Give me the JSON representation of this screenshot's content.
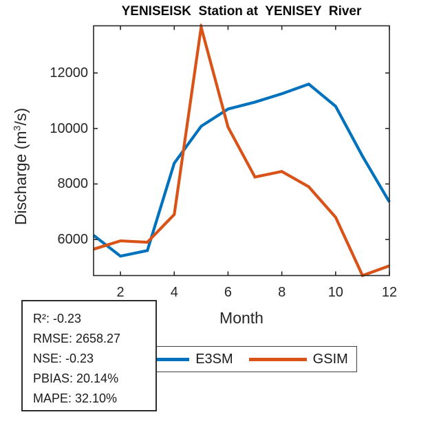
{
  "chart_data": {
    "type": "line",
    "title": "YENISEISK  Station at  YENISEY  River",
    "xlabel": "Month",
    "ylabel": "Discharge (m3/s)",
    "ylabel_parts": {
      "pre": "Discharge (m",
      "sup": "3",
      "post": "/s)"
    },
    "x": [
      1,
      2,
      3,
      4,
      5,
      6,
      7,
      8,
      9,
      10,
      11,
      12
    ],
    "xlim": [
      1,
      12
    ],
    "ylim": [
      4700,
      13700
    ],
    "xticks": [
      2,
      4,
      6,
      8,
      10,
      12
    ],
    "yticks": [
      6000,
      8000,
      10000,
      12000
    ],
    "grid": false,
    "legend_position": "below-axis",
    "series": [
      {
        "name": "E3SM",
        "color": "#0072BD",
        "values": [
          6150,
          5400,
          5600,
          8750,
          10080,
          10700,
          10950,
          11250,
          11600,
          10800,
          9000,
          7350
        ]
      },
      {
        "name": "GSIM",
        "color": "#D95319",
        "values": [
          5650,
          5950,
          5900,
          6900,
          13650,
          10050,
          8250,
          8450,
          7900,
          6800,
          4700,
          5050
        ]
      }
    ]
  },
  "stats_box": {
    "lines": [
      "R²: -0.23",
      "RMSE: 2658.27",
      "NSE: -0.23",
      "PBIAS: 20.14%",
      "MAPE: 32.10%"
    ]
  },
  "style": {
    "axis_color": "#262626",
    "e3sm_color": "#0072BD",
    "gsim_color": "#D95319"
  }
}
